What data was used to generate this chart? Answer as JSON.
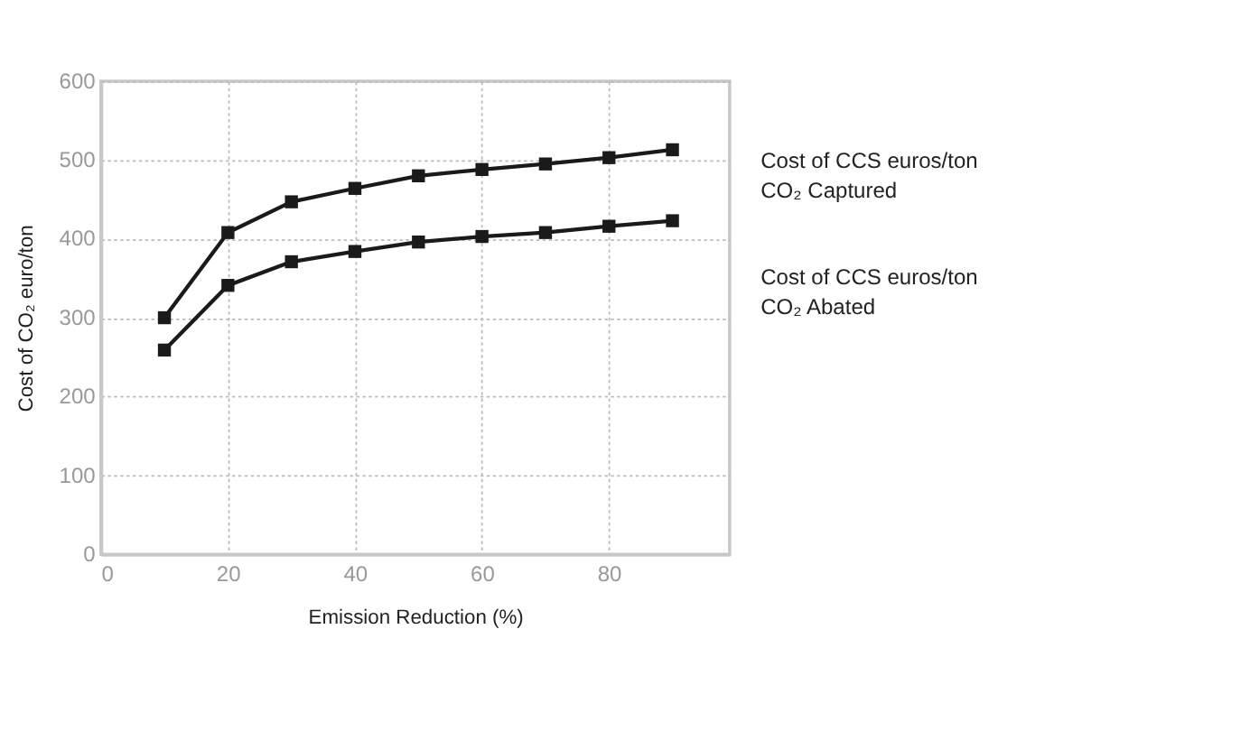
{
  "chart_data": {
    "type": "line",
    "xlabel": "Emission Reduction (%)",
    "ylabel": "Cost of CO₂ euro/ton",
    "x": [
      10,
      20,
      30,
      40,
      50,
      60,
      70,
      80,
      90
    ],
    "series": [
      {
        "name": "Cost of CCS euros/ton CO₂ Captured",
        "color": "#1a1a1a",
        "values": [
          300,
          408,
          447,
          464,
          480,
          488,
          495,
          503,
          513
        ]
      },
      {
        "name": "Cost of CCS euros/ton CO₂ Abated",
        "color": "#1a1a1a",
        "values": [
          259,
          341,
          371,
          384,
          396,
          403,
          408,
          416,
          423
        ]
      }
    ],
    "xlim": [
      0,
      99
    ],
    "xticks": [
      0,
      20,
      40,
      60,
      80
    ],
    "ylim": [
      0,
      600
    ],
    "yticks": [
      0,
      100,
      200,
      300,
      400,
      500,
      600
    ],
    "grid": true,
    "legend": "right",
    "marker": "square",
    "line_style": "solid"
  }
}
